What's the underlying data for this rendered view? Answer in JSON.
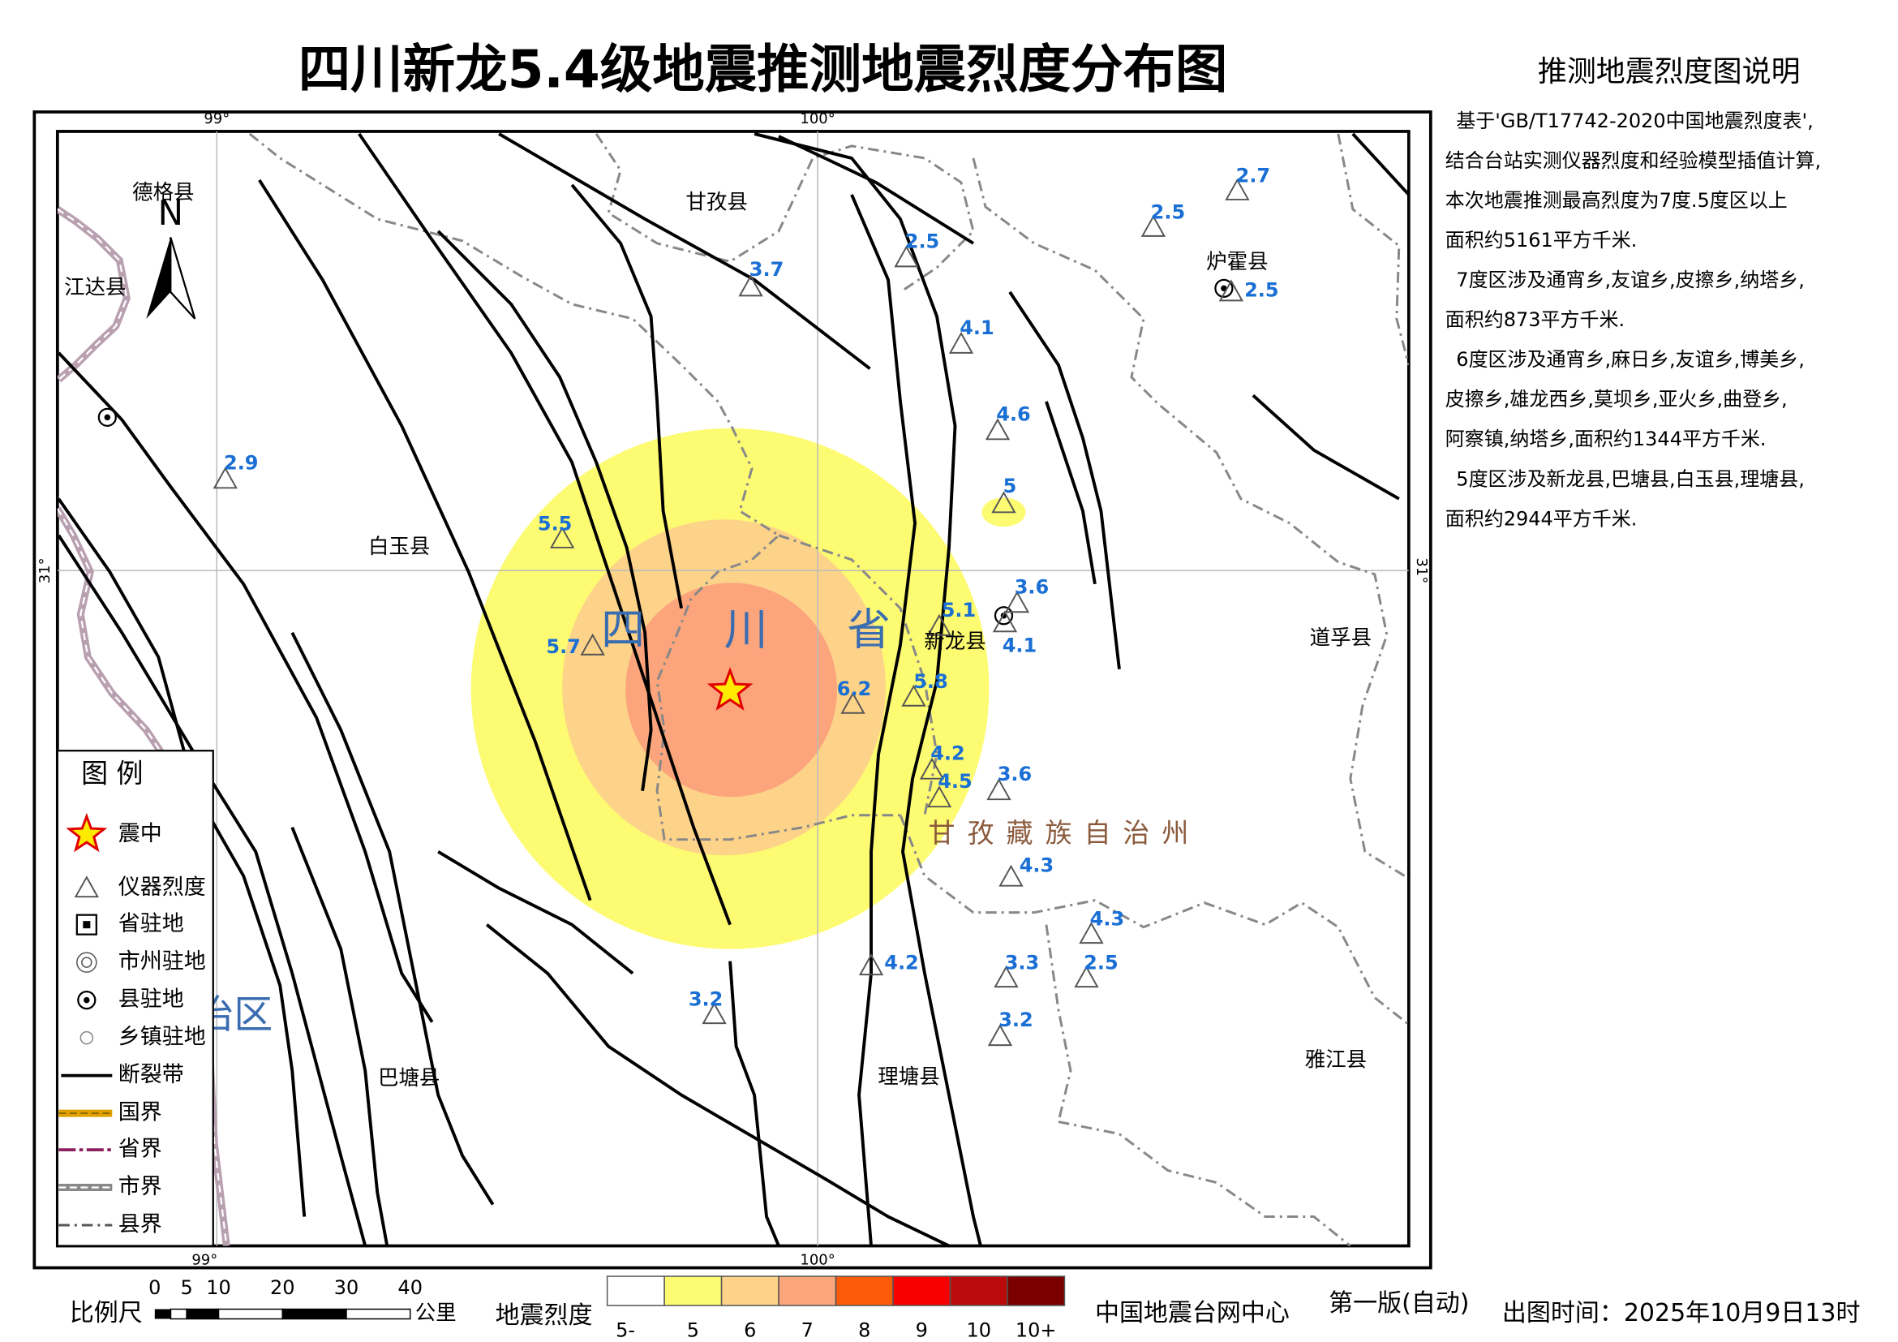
{
  "title": "四川新龙5.4级地震推测地震烈度分布图",
  "explanation": {
    "title": "推测地震烈度图说明",
    "lines": [
      "基于'GB/T17742-2020中国地震烈度表',",
      "结合台站实测仪器烈度和经验模型插值计算,",
      "本次地震推测最高烈度为7度.5度区以上",
      "面积约5161平方千米.",
      "7度区涉及通宵乡,友谊乡,皮擦乡,纳塔乡,",
      "面积约873平方千米.",
      "6度区涉及通宵乡,麻日乡,友谊乡,博美乡,",
      "皮擦乡,雄龙西乡,莫坝乡,亚火乡,曲登乡,",
      "阿察镇,纳塔乡,面积约1344平方千米.",
      "5度区涉及新龙县,巴塘县,白玉县,理塘县,",
      "面积约2944平方千米."
    ]
  },
  "map": {
    "graticule": {
      "lon_99": "99°",
      "lon_100": "100°",
      "lat_31": "31°"
    },
    "north": "N",
    "counties": [
      "德格县",
      "江达县",
      "甘孜县",
      "炉霍县",
      "白玉县",
      "新龙县",
      "道孚县",
      "巴塘县",
      "理塘县",
      "雅江县"
    ],
    "province_chars": [
      "四",
      "川",
      "省"
    ],
    "prefecture": "甘孜藏族自治州",
    "region_fragment": "治区",
    "stations": [
      2.7,
      2.5,
      2.5,
      3.7,
      2.5,
      4.1,
      4.6,
      2.9,
      5,
      5.5,
      3.6,
      5.1,
      4.1,
      5.7,
      6.2,
      5.8,
      4.2,
      4.5,
      3.6,
      4.3,
      4.3,
      4.2,
      3.3,
      2.5,
      3.2,
      3.2
    ]
  },
  "legend": {
    "title": "图 例",
    "items": [
      "震中",
      "仪器烈度",
      "省驻地",
      "市州驻地",
      "县驻地",
      "乡镇驻地",
      "断裂带",
      "国界",
      "省界",
      "市界",
      "县界"
    ]
  },
  "scale": {
    "label": "比例尺",
    "ticks": [
      0,
      5,
      10,
      20,
      30,
      40
    ],
    "unit": "公里"
  },
  "intensity_legend": {
    "label": "地震烈度",
    "classes": [
      {
        "label": "5-",
        "color": "#ffffff"
      },
      {
        "label": "5",
        "color": "#fdfb72"
      },
      {
        "label": "6",
        "color": "#fdd38a"
      },
      {
        "label": "7",
        "color": "#fca57c"
      },
      {
        "label": "8",
        "color": "#fb5a08"
      },
      {
        "label": "9",
        "color": "#f80000"
      },
      {
        "label": "10",
        "color": "#bb0a0a"
      },
      {
        "label": "10+",
        "color": "#7a0000"
      }
    ]
  },
  "footer": {
    "agency": "中国地震台网中心",
    "edition": "第一版(自动)",
    "time": "出图时间：2025年10月9日13时"
  }
}
